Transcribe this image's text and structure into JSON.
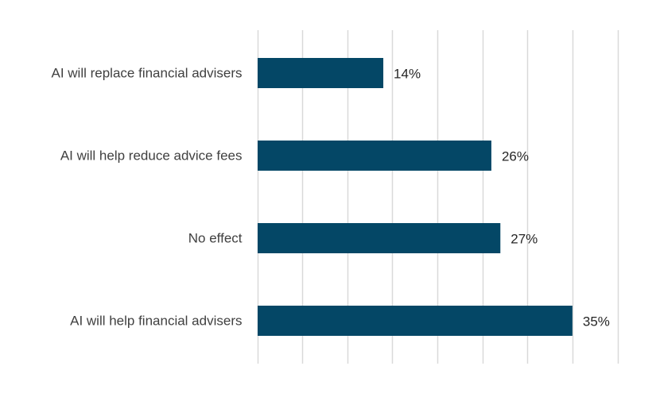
{
  "chart_data": {
    "type": "bar",
    "orientation": "horizontal",
    "categories": [
      "AI will replace financial advisers",
      "AI will help reduce advice fees",
      "No effect",
      "AI will help financial advisers"
    ],
    "values": [
      14,
      26,
      27,
      35
    ],
    "data_labels": [
      "14%",
      "26%",
      "27%",
      "35%"
    ],
    "unit": "%",
    "xlim": [
      0,
      40
    ],
    "x_tick_step": 5,
    "grid": "vertical",
    "bar_color": "#044766",
    "gridline_color": "#d9d9d9"
  }
}
